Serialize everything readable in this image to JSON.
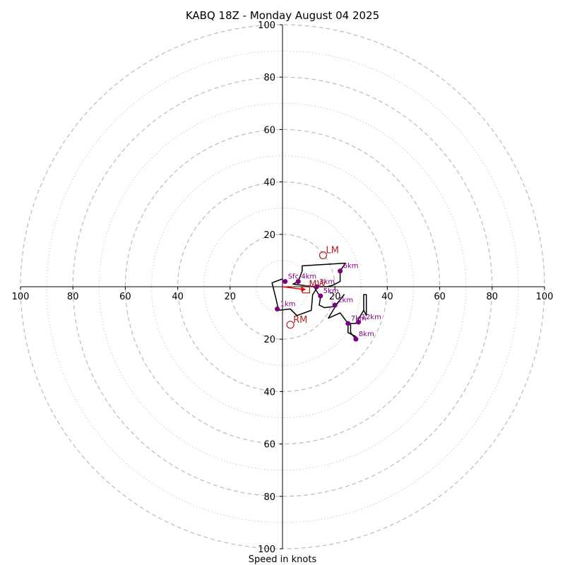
{
  "chart_data": {
    "type": "line",
    "title": "KABQ 18Z - Monday August 04 2025",
    "xlabel": "Speed in knots",
    "ylabel": "",
    "xlim": [
      -100,
      100
    ],
    "ylim": [
      -100,
      100
    ],
    "grid": true,
    "ring_major": [
      20,
      40,
      60,
      80,
      100
    ],
    "ring_minor": [
      10,
      30,
      50,
      70,
      90
    ],
    "x_ticks": [
      {
        "value": -100,
        "label": "100"
      },
      {
        "value": -80,
        "label": "80"
      },
      {
        "value": -60,
        "label": "60"
      },
      {
        "value": -40,
        "label": "40"
      },
      {
        "value": -20,
        "label": "20"
      },
      {
        "value": 20,
        "label": "20"
      },
      {
        "value": 40,
        "label": "40"
      },
      {
        "value": 60,
        "label": "60"
      },
      {
        "value": 80,
        "label": "80"
      },
      {
        "value": 100,
        "label": "100"
      }
    ],
    "y_ticks": [
      {
        "value": 100,
        "label": "100"
      },
      {
        "value": 80,
        "label": "80"
      },
      {
        "value": 60,
        "label": "60"
      },
      {
        "value": 40,
        "label": "40"
      },
      {
        "value": 20,
        "label": "20"
      },
      {
        "value": -20,
        "label": "20"
      },
      {
        "value": -40,
        "label": "40"
      },
      {
        "value": -60,
        "label": "60"
      },
      {
        "value": -80,
        "label": "80"
      },
      {
        "value": -100,
        "label": "100"
      }
    ],
    "hodograph": {
      "color": "#000000",
      "points": [
        [
          0,
          3
        ],
        [
          -4,
          1.5
        ],
        [
          -2.5,
          -4.5
        ],
        [
          -1.5,
          -9
        ],
        [
          3,
          -8.5
        ],
        [
          5.5,
          -11
        ],
        [
          11,
          -9
        ],
        [
          11.5,
          -3
        ],
        [
          13.5,
          0
        ],
        [
          17,
          0
        ],
        [
          19,
          0.5
        ],
        [
          22,
          2
        ],
        [
          22,
          6
        ],
        [
          24,
          9
        ],
        [
          7.5,
          8
        ],
        [
          7.5,
          6
        ],
        [
          6,
          2
        ],
        [
          4,
          1
        ],
        [
          12,
          0
        ],
        [
          14.5,
          -4
        ],
        [
          14,
          -7
        ],
        [
          16,
          -8
        ],
        [
          20,
          -7.5
        ],
        [
          23.5,
          -3
        ],
        [
          20.5,
          -7
        ],
        [
          17.5,
          -12
        ],
        [
          22,
          -10
        ],
        [
          25,
          -14
        ],
        [
          25,
          -17.5
        ],
        [
          28,
          -19
        ],
        [
          28,
          -20
        ],
        [
          26,
          -17.5
        ],
        [
          26,
          -14
        ],
        [
          28,
          -14
        ],
        [
          31,
          -9
        ],
        [
          31,
          -3
        ],
        [
          32,
          -3
        ],
        [
          32,
          -11
        ],
        [
          31,
          -9
        ]
      ]
    },
    "height_markers": [
      {
        "label": "Sfc",
        "u": 1,
        "v": 2
      },
      {
        "label": "1km",
        "u": -2,
        "v": -8.5
      },
      {
        "label": "4km",
        "u": 6,
        "v": 2
      },
      {
        "label": "3km",
        "u": 13,
        "v": 0
      },
      {
        "label": "5km",
        "u": 14.5,
        "v": -3.5
      },
      {
        "label": "6km",
        "u": 22,
        "v": 6
      },
      {
        "label": "2km",
        "u": 20,
        "v": -7
      },
      {
        "label": "7km",
        "u": 25,
        "v": -14
      },
      {
        "label": "12km",
        "u": 29,
        "v": -13.5
      },
      {
        "label": "8km",
        "u": 28,
        "v": -20
      }
    ],
    "storm_motion": [
      {
        "label": "LM",
        "u": 15.5,
        "v": 12
      },
      {
        "label": "RM",
        "u": 3,
        "v": -14.5
      },
      {
        "label": "MW",
        "u": 9,
        "v": -1
      }
    ],
    "bunkers_vector": {
      "color": "#ff0000",
      "u": 9,
      "v": -1
    },
    "colors": {
      "grid_major": "#bbbbbb",
      "grid_minor": "#cccccc",
      "axes": "#000000",
      "marker": "#7b0080",
      "storm": "#b22222"
    }
  }
}
